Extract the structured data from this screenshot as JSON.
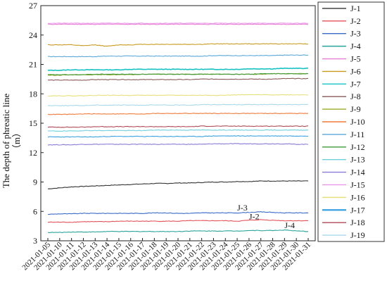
{
  "chart_data": {
    "type": "line",
    "title": "",
    "xlabel": "",
    "ylabel": "The depth of phreatic line",
    "yunit": "（m）",
    "ylim": [
      3,
      27
    ],
    "yticks": [
      3,
      6,
      9,
      12,
      15,
      18,
      21,
      24,
      27
    ],
    "grid": false,
    "legend_position": "right",
    "categories": [
      "2021-01-05",
      "2021-01-10",
      "2021-01-11",
      "2021-01-12",
      "2021-01-13",
      "2021-01-14",
      "2021-01-15",
      "2021-01-16",
      "2021-01-17",
      "2021-01-18",
      "2021-01-19",
      "2021-01-20",
      "2021-01-21",
      "2021-01-22",
      "2021-01-23",
      "2021-01-24",
      "2021-01-25",
      "2021-01-26",
      "2021-01-27",
      "2021-01-28",
      "2021-01-29",
      "2021-01-30",
      "2021-01-31"
    ],
    "series": [
      {
        "name": "J-1",
        "color": "#333333",
        "values": [
          8.3,
          8.4,
          8.5,
          8.55,
          8.6,
          8.65,
          8.7,
          8.75,
          8.8,
          8.85,
          8.85,
          8.9,
          8.9,
          8.95,
          9.0,
          9.0,
          9.05,
          9.05,
          9.1,
          9.1,
          9.1,
          9.1,
          9.1
        ]
      },
      {
        "name": "J-2",
        "color": "#e4525c",
        "values": [
          4.9,
          4.9,
          4.9,
          4.95,
          4.95,
          4.95,
          5.0,
          5.0,
          5.0,
          5.0,
          5.0,
          5.0,
          5.05,
          5.05,
          5.05,
          5.05,
          5.0,
          5.1,
          5.15,
          5.1,
          5.05,
          5.05,
          5.05
        ]
      },
      {
        "name": "J-3",
        "color": "#3b6bc8",
        "values": [
          5.7,
          5.75,
          5.75,
          5.8,
          5.8,
          5.8,
          5.8,
          5.8,
          5.8,
          5.85,
          5.85,
          5.8,
          5.8,
          5.85,
          5.85,
          5.85,
          5.85,
          5.9,
          5.95,
          5.9,
          5.85,
          5.85,
          5.85
        ]
      },
      {
        "name": "J-4",
        "color": "#2aa39a",
        "values": [
          3.85,
          3.85,
          3.9,
          3.9,
          3.9,
          3.95,
          3.95,
          3.95,
          3.95,
          3.95,
          3.95,
          3.95,
          4.0,
          4.0,
          4.0,
          4.0,
          4.0,
          4.05,
          4.05,
          4.05,
          4.1,
          4.0,
          3.95
        ]
      },
      {
        "name": "J-5",
        "color": "#e77fd6",
        "values": [
          25.1,
          25.1,
          25.1,
          25.1,
          25.1,
          25.1,
          25.1,
          25.1,
          25.1,
          25.1,
          25.1,
          25.1,
          25.1,
          25.1,
          25.1,
          25.1,
          25.1,
          25.1,
          25.1,
          25.1,
          25.1,
          25.1,
          25.1
        ]
      },
      {
        "name": "J-6",
        "color": "#c99a1f",
        "values": [
          23.0,
          23.0,
          23.0,
          22.9,
          23.0,
          22.85,
          23.0,
          23.0,
          23.05,
          23.05,
          23.05,
          23.05,
          23.05,
          23.05,
          23.1,
          23.1,
          23.1,
          23.1,
          23.1,
          23.1,
          23.1,
          23.1,
          23.1
        ]
      },
      {
        "name": "J-7",
        "color": "#18c2c4",
        "values": [
          20.4,
          20.4,
          20.45,
          20.45,
          20.45,
          20.45,
          20.45,
          20.5,
          20.5,
          20.5,
          20.5,
          20.5,
          20.5,
          20.5,
          20.5,
          20.5,
          20.5,
          20.55,
          20.55,
          20.55,
          20.6,
          20.6,
          20.6
        ]
      },
      {
        "name": "J-8",
        "color": "#8a5a5a",
        "values": [
          19.4,
          19.4,
          19.4,
          19.4,
          19.45,
          19.45,
          19.45,
          19.45,
          19.45,
          19.45,
          19.45,
          19.45,
          19.45,
          19.5,
          19.5,
          19.5,
          19.5,
          19.5,
          19.5,
          19.5,
          19.55,
          19.55,
          19.55
        ]
      },
      {
        "name": "J-9",
        "color": "#9aaa2a",
        "values": [
          19.9,
          19.9,
          19.95,
          19.95,
          19.95,
          19.95,
          19.95,
          19.95,
          20.0,
          20.0,
          20.0,
          20.0,
          20.0,
          20.0,
          20.0,
          20.0,
          20.0,
          20.0,
          20.0,
          20.05,
          20.05,
          20.05,
          20.05
        ]
      },
      {
        "name": "J-10",
        "color": "#f07a3a",
        "values": [
          15.9,
          15.9,
          15.9,
          15.95,
          15.95,
          15.95,
          15.95,
          15.95,
          15.95,
          16.0,
          16.0,
          16.0,
          16.0,
          16.0,
          16.0,
          16.0,
          16.0,
          16.0,
          16.0,
          16.0,
          16.0,
          16.0,
          16.0
        ]
      },
      {
        "name": "J-11",
        "color": "#5aa8d8",
        "values": [
          21.8,
          21.8,
          21.8,
          21.8,
          21.8,
          21.85,
          21.85,
          21.85,
          21.85,
          21.85,
          21.85,
          21.85,
          21.85,
          21.85,
          21.9,
          21.9,
          21.9,
          21.9,
          21.9,
          21.9,
          21.95,
          21.95,
          21.95
        ]
      },
      {
        "name": "J-12",
        "color": "#3e9a3a",
        "values": [
          19.95,
          19.95,
          19.95,
          19.95,
          20.0,
          20.0,
          20.0,
          20.0,
          20.0,
          20.0,
          20.0,
          20.0,
          20.0,
          20.0,
          20.0,
          20.0,
          20.0,
          20.0,
          20.05,
          20.05,
          20.05,
          20.05,
          20.05
        ]
      },
      {
        "name": "J-13",
        "color": "#6fd0dc",
        "values": [
          14.2,
          14.2,
          14.2,
          14.25,
          14.25,
          14.25,
          14.25,
          14.25,
          14.25,
          14.3,
          14.3,
          14.3,
          14.3,
          14.3,
          14.3,
          14.3,
          14.3,
          14.3,
          14.3,
          14.3,
          14.3,
          14.3,
          14.3
        ]
      },
      {
        "name": "J-14",
        "color": "#8a7ad8",
        "values": [
          12.8,
          12.8,
          12.8,
          12.85,
          12.85,
          12.85,
          12.85,
          12.85,
          12.85,
          12.85,
          12.85,
          12.85,
          12.85,
          12.85,
          12.9,
          12.9,
          12.9,
          12.9,
          12.9,
          12.9,
          12.9,
          12.85,
          12.85
        ]
      },
      {
        "name": "J-15",
        "color": "#ec98e8",
        "values": [
          25.2,
          25.2,
          25.2,
          25.2,
          25.2,
          25.2,
          25.2,
          25.2,
          25.2,
          25.2,
          25.2,
          25.2,
          25.2,
          25.2,
          25.2,
          25.2,
          25.2,
          25.2,
          25.2,
          25.2,
          25.2,
          25.2,
          25.2
        ]
      },
      {
        "name": "J-16",
        "color": "#e6e07a",
        "values": [
          17.8,
          17.8,
          17.8,
          17.8,
          17.85,
          17.85,
          17.85,
          17.85,
          17.85,
          17.85,
          17.85,
          17.85,
          17.85,
          17.85,
          17.85,
          17.85,
          17.9,
          17.9,
          17.9,
          17.9,
          17.9,
          17.9,
          17.9
        ]
      },
      {
        "name": "J-17",
        "color": "#3aa0e0",
        "values": [
          13.6,
          13.6,
          13.6,
          13.6,
          13.6,
          13.65,
          13.65,
          13.65,
          13.65,
          13.65,
          13.65,
          13.65,
          13.65,
          13.65,
          13.7,
          13.7,
          13.7,
          13.7,
          13.7,
          13.7,
          13.7,
          13.7,
          13.7
        ]
      },
      {
        "name": "J-18",
        "color": "#b04a58",
        "values": [
          14.6,
          14.6,
          14.6,
          14.6,
          14.65,
          14.65,
          14.65,
          14.65,
          14.65,
          14.65,
          14.65,
          14.65,
          14.65,
          14.7,
          14.7,
          14.7,
          14.7,
          14.7,
          14.7,
          14.7,
          14.7,
          14.7,
          14.7
        ]
      },
      {
        "name": "J-19",
        "color": "#a8d8ec",
        "values": [
          16.8,
          16.8,
          16.8,
          16.8,
          16.85,
          16.85,
          16.85,
          16.85,
          16.85,
          16.85,
          16.85,
          16.85,
          16.85,
          16.9,
          16.9,
          16.9,
          16.9,
          16.9,
          16.9,
          16.9,
          16.9,
          16.9,
          16.9
        ]
      }
    ],
    "annotations": [
      {
        "text": "J-3",
        "x": "2021-01-25",
        "y": 6.1
      },
      {
        "text": "J-2",
        "x": "2021-01-26",
        "y": 5.2
      },
      {
        "text": "J-4",
        "x": "2021-01-29",
        "y": 4.3
      }
    ]
  }
}
